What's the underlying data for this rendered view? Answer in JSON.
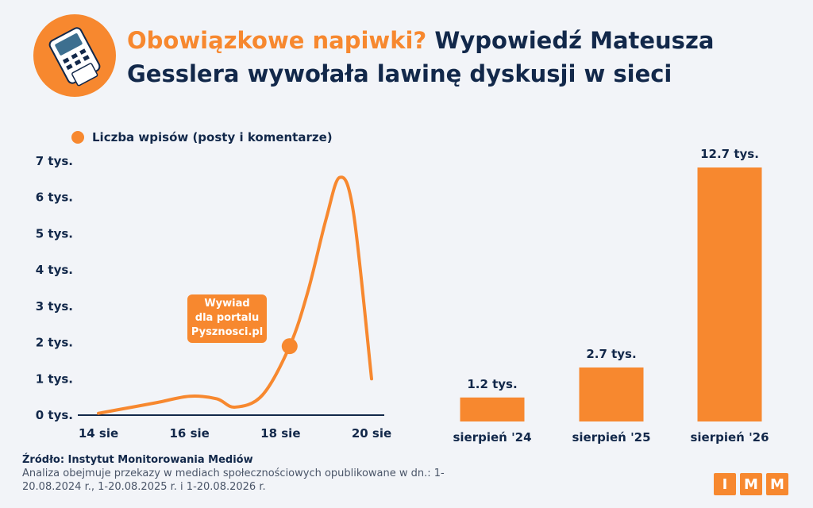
{
  "header": {
    "title_accent": "Obowiązkowe napiwki?",
    "title_rest": "Wypowiedź Mateusza Gesslera wywołała lawinę dyskusji w sieci",
    "icon": "payment-terminal-icon"
  },
  "colors": {
    "accent": "#f7882f",
    "navy": "#12284a",
    "background": "#f2f4f8"
  },
  "chart_data": [
    {
      "type": "line",
      "legend": "Liczba wpisów (posty i komentarze)",
      "legend_position": "top-left",
      "x_ticks": [
        "14 sie",
        "16 sie",
        "18 sie",
        "20 sie"
      ],
      "y_ticks": [
        "0 tys.",
        "1 tys.",
        "2 tys.",
        "3 tys.",
        "4 tys.",
        "5 tys.",
        "6 tys.",
        "7 tys."
      ],
      "ylim": [
        0,
        7
      ],
      "xlim": [
        0,
        6
      ],
      "series": [
        {
          "x": [
            0,
            0.65,
            1.3,
            2.0,
            2.6,
            3.0,
            3.6,
            4.2,
            4.6,
            5.0,
            5.3,
            5.6,
            6.0
          ],
          "y": [
            0.05,
            0.2,
            0.35,
            0.52,
            0.45,
            0.22,
            0.55,
            1.9,
            3.4,
            5.4,
            6.55,
            5.6,
            1.0
          ]
        }
      ],
      "annotation": {
        "x": 4.2,
        "y": 1.9,
        "lines": [
          "Wywiad",
          "dla portalu",
          "Pysznosci.pl"
        ]
      },
      "grid": false
    },
    {
      "type": "bar",
      "categories": [
        "sierpień '24",
        "sierpień '25",
        "sierpień '26"
      ],
      "values": [
        1.2,
        2.7,
        12.7
      ],
      "value_labels": [
        "1.2 tys.",
        "2.7 tys.",
        "12.7 tys."
      ],
      "ylim": [
        0,
        12.7
      ]
    }
  ],
  "footer": {
    "source_label": "Źródło: Instytut Monitorowania Mediów",
    "note": "Analiza obejmuje przekazy w mediach społecznościowych opublikowane w dn.: 1-20.08.2024 r., 1-20.08.2025 r. i 1-20.08.2026 r.",
    "logo_letters": [
      "I",
      "M",
      "M"
    ]
  }
}
